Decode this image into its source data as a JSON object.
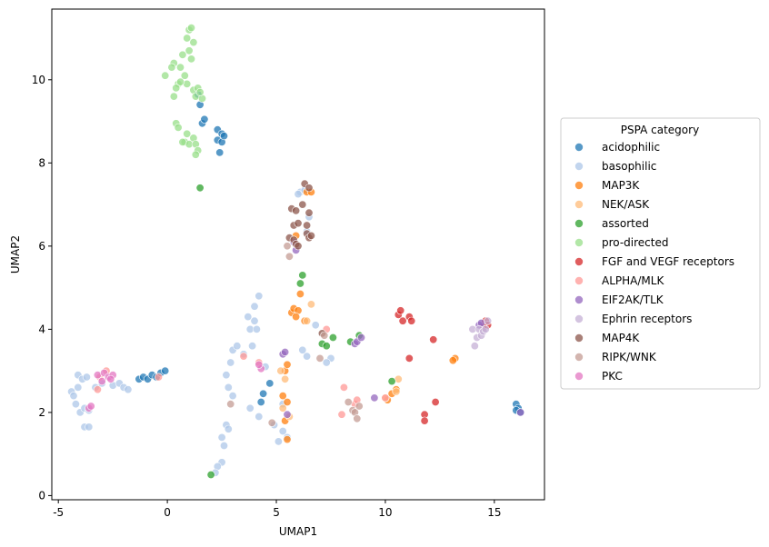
{
  "chart_data": {
    "type": "scatter",
    "xlabel": "UMAP1",
    "ylabel": "UMAP2",
    "xlim": [
      -5.3,
      17.3
    ],
    "ylim": [
      -0.1,
      11.7
    ],
    "xticks": [
      -5,
      0,
      5,
      10,
      15
    ],
    "yticks": [
      0,
      2,
      4,
      6,
      8,
      10
    ],
    "grid": false,
    "legend": {
      "title": "PSPA category",
      "placement": "outside-right"
    },
    "series": [
      {
        "name": "acidophilic",
        "color": "#1f77b4",
        "points": [
          [
            1.4,
            9.65
          ],
          [
            1.5,
            9.4
          ],
          [
            1.6,
            8.95
          ],
          [
            1.7,
            9.05
          ],
          [
            2.3,
            8.8
          ],
          [
            2.5,
            8.7
          ],
          [
            2.3,
            8.55
          ],
          [
            2.5,
            8.5
          ],
          [
            2.6,
            8.65
          ],
          [
            2.4,
            8.25
          ],
          [
            -1.3,
            2.8
          ],
          [
            -1.1,
            2.85
          ],
          [
            -0.9,
            2.8
          ],
          [
            -0.7,
            2.9
          ],
          [
            -0.5,
            2.85
          ],
          [
            -0.3,
            2.95
          ],
          [
            -0.1,
            3.0
          ],
          [
            4.3,
            2.25
          ],
          [
            4.4,
            2.45
          ],
          [
            4.7,
            2.7
          ],
          [
            16.0,
            2.2
          ],
          [
            16.1,
            2.1
          ],
          [
            16.0,
            2.05
          ],
          [
            16.2,
            2.0
          ]
        ]
      },
      {
        "name": "basophilic",
        "color": "#aec7e8",
        "points": [
          [
            -4.4,
            2.5
          ],
          [
            -4.3,
            2.4
          ],
          [
            -4.1,
            2.9
          ],
          [
            -3.9,
            2.8
          ],
          [
            -3.7,
            2.85
          ],
          [
            -4.2,
            2.2
          ],
          [
            -4.0,
            2.0
          ],
          [
            -3.8,
            2.1
          ],
          [
            -3.6,
            2.05
          ],
          [
            -3.8,
            1.65
          ],
          [
            -3.6,
            1.65
          ],
          [
            -4.1,
            2.6
          ],
          [
            -3.3,
            2.6
          ],
          [
            -3.0,
            2.7
          ],
          [
            -2.5,
            2.65
          ],
          [
            -2.2,
            2.7
          ],
          [
            -2.0,
            2.6
          ],
          [
            -1.8,
            2.55
          ],
          [
            3.0,
            3.5
          ],
          [
            3.2,
            3.6
          ],
          [
            3.5,
            3.4
          ],
          [
            3.8,
            4.0
          ],
          [
            3.7,
            4.3
          ],
          [
            4.0,
            4.2
          ],
          [
            4.2,
            4.8
          ],
          [
            4.0,
            4.55
          ],
          [
            4.1,
            4.0
          ],
          [
            3.9,
            3.6
          ],
          [
            2.7,
            2.9
          ],
          [
            2.8,
            2.6
          ],
          [
            2.9,
            3.2
          ],
          [
            3.0,
            2.4
          ],
          [
            2.7,
            1.7
          ],
          [
            2.8,
            1.6
          ],
          [
            2.5,
            1.4
          ],
          [
            2.6,
            1.2
          ],
          [
            2.5,
            0.8
          ],
          [
            2.3,
            0.7
          ],
          [
            2.2,
            0.55
          ],
          [
            3.8,
            2.1
          ],
          [
            4.2,
            1.9
          ],
          [
            4.5,
            3.1
          ],
          [
            4.9,
            1.7
          ],
          [
            5.1,
            1.3
          ],
          [
            5.3,
            1.55
          ],
          [
            5.5,
            1.4
          ],
          [
            5.3,
            2.2
          ],
          [
            6.1,
            7.3
          ],
          [
            6.0,
            7.25
          ],
          [
            6.3,
            7.35
          ],
          [
            6.5,
            6.7
          ],
          [
            6.4,
            6.35
          ],
          [
            6.2,
            3.5
          ],
          [
            6.4,
            3.35
          ],
          [
            6.8,
            4.1
          ],
          [
            7.5,
            3.3
          ],
          [
            7.3,
            3.2
          ]
        ]
      },
      {
        "name": "MAP3K",
        "color": "#ff7f0e",
        "points": [
          [
            5.7,
            4.4
          ],
          [
            5.8,
            4.5
          ],
          [
            6.0,
            4.45
          ],
          [
            5.9,
            4.3
          ],
          [
            6.1,
            4.85
          ],
          [
            6.3,
            4.2
          ],
          [
            6.4,
            7.3
          ],
          [
            6.6,
            7.3
          ],
          [
            5.9,
            6.25
          ],
          [
            5.3,
            2.4
          ],
          [
            5.5,
            2.25
          ],
          [
            5.4,
            3.0
          ],
          [
            5.5,
            3.15
          ],
          [
            5.5,
            1.35
          ],
          [
            5.4,
            1.8
          ],
          [
            10.1,
            2.3
          ],
          [
            10.3,
            2.45
          ],
          [
            10.5,
            2.55
          ],
          [
            13.2,
            3.3
          ],
          [
            13.1,
            3.25
          ]
        ]
      },
      {
        "name": "NEK/ASK",
        "color": "#ffbb78",
        "points": [
          [
            5.2,
            3.0
          ],
          [
            5.4,
            2.8
          ],
          [
            5.3,
            2.1
          ],
          [
            5.6,
            1.9
          ],
          [
            6.4,
            4.2
          ],
          [
            6.6,
            4.6
          ],
          [
            10.0,
            2.35
          ],
          [
            10.5,
            2.5
          ],
          [
            10.6,
            2.8
          ]
        ]
      },
      {
        "name": "assorted",
        "color": "#2ca02c",
        "points": [
          [
            1.5,
            7.4
          ],
          [
            2.0,
            0.5
          ],
          [
            6.2,
            5.3
          ],
          [
            6.1,
            5.1
          ],
          [
            7.1,
            3.65
          ],
          [
            7.3,
            3.6
          ],
          [
            7.6,
            3.8
          ],
          [
            8.4,
            3.7
          ],
          [
            8.8,
            3.85
          ],
          [
            10.3,
            2.75
          ]
        ]
      },
      {
        "name": "pro-directed",
        "color": "#98df8a",
        "points": [
          [
            1.0,
            11.2
          ],
          [
            1.1,
            11.25
          ],
          [
            0.9,
            11.0
          ],
          [
            1.2,
            10.9
          ],
          [
            1.0,
            10.7
          ],
          [
            0.7,
            10.6
          ],
          [
            1.1,
            10.5
          ],
          [
            0.3,
            10.4
          ],
          [
            0.2,
            10.3
          ],
          [
            0.6,
            10.3
          ],
          [
            -0.1,
            10.1
          ],
          [
            0.8,
            10.1
          ],
          [
            0.5,
            9.9
          ],
          [
            0.9,
            9.9
          ],
          [
            0.4,
            9.8
          ],
          [
            0.6,
            9.95
          ],
          [
            1.2,
            9.75
          ],
          [
            1.4,
            9.8
          ],
          [
            0.3,
            9.6
          ],
          [
            1.3,
            9.6
          ],
          [
            1.6,
            9.55
          ],
          [
            1.5,
            9.7
          ],
          [
            0.4,
            8.95
          ],
          [
            0.5,
            8.85
          ],
          [
            0.9,
            8.7
          ],
          [
            1.2,
            8.6
          ],
          [
            0.8,
            8.5
          ],
          [
            1.0,
            8.45
          ],
          [
            1.3,
            8.45
          ],
          [
            0.7,
            8.5
          ],
          [
            1.4,
            8.3
          ],
          [
            1.3,
            8.2
          ]
        ]
      },
      {
        "name": "FGF and VEGF receptors",
        "color": "#d62728",
        "points": [
          [
            10.6,
            4.35
          ],
          [
            10.7,
            4.45
          ],
          [
            10.8,
            4.2
          ],
          [
            11.1,
            4.3
          ],
          [
            11.2,
            4.2
          ],
          [
            11.1,
            3.3
          ],
          [
            12.2,
            3.75
          ],
          [
            12.3,
            2.25
          ],
          [
            11.8,
            1.95
          ],
          [
            11.8,
            1.8
          ],
          [
            14.6,
            4.2
          ],
          [
            14.7,
            4.1
          ],
          [
            14.5,
            4.05
          ]
        ]
      },
      {
        "name": "ALPHA/MLK",
        "color": "#ff9896",
        "points": [
          [
            -3.2,
            2.55
          ],
          [
            -3.1,
            2.85
          ],
          [
            -2.8,
            3.0
          ],
          [
            -0.4,
            2.85
          ],
          [
            3.5,
            3.35
          ],
          [
            4.2,
            3.2
          ],
          [
            7.3,
            4.0
          ],
          [
            8.0,
            1.95
          ],
          [
            8.1,
            2.6
          ],
          [
            8.6,
            2.2
          ],
          [
            8.7,
            2.3
          ],
          [
            10.0,
            2.35
          ]
        ]
      },
      {
        "name": "EIF2AK/TLK",
        "color": "#9467bd",
        "points": [
          [
            5.3,
            3.4
          ],
          [
            5.4,
            3.45
          ],
          [
            5.5,
            1.95
          ],
          [
            5.8,
            6.1
          ],
          [
            5.9,
            5.9
          ],
          [
            8.6,
            3.65
          ],
          [
            8.7,
            3.7
          ],
          [
            8.9,
            3.8
          ],
          [
            9.5,
            2.35
          ],
          [
            14.3,
            4.1
          ],
          [
            14.4,
            4.15
          ],
          [
            16.2,
            2.0
          ]
        ]
      },
      {
        "name": "Ephrin receptors",
        "color": "#c5b0d5",
        "points": [
          [
            14.0,
            4.0
          ],
          [
            14.1,
            3.6
          ],
          [
            14.2,
            3.8
          ],
          [
            14.3,
            4.0
          ],
          [
            14.4,
            3.85
          ],
          [
            14.5,
            3.95
          ],
          [
            14.6,
            4.0
          ],
          [
            14.7,
            4.2
          ]
        ]
      },
      {
        "name": "MAP4K",
        "color": "#8c564b",
        "points": [
          [
            6.3,
            7.5
          ],
          [
            6.5,
            7.4
          ],
          [
            6.2,
            7.0
          ],
          [
            5.7,
            6.9
          ],
          [
            5.9,
            6.85
          ],
          [
            6.5,
            6.8
          ],
          [
            5.8,
            6.5
          ],
          [
            6.0,
            6.55
          ],
          [
            6.4,
            6.5
          ],
          [
            6.4,
            6.3
          ],
          [
            6.5,
            6.2
          ],
          [
            6.6,
            6.25
          ],
          [
            5.6,
            6.2
          ],
          [
            5.8,
            6.15
          ],
          [
            5.9,
            6.05
          ],
          [
            6.0,
            6.0
          ],
          [
            7.1,
            3.9
          ]
        ]
      },
      {
        "name": "RIPK/WNK",
        "color": "#c49c94",
        "points": [
          [
            5.5,
            6.0
          ],
          [
            5.6,
            5.75
          ],
          [
            2.9,
            2.2
          ],
          [
            4.8,
            1.75
          ],
          [
            7.0,
            3.3
          ],
          [
            7.2,
            3.85
          ],
          [
            8.3,
            2.25
          ],
          [
            8.5,
            2.05
          ],
          [
            8.6,
            2.0
          ],
          [
            8.7,
            1.85
          ],
          [
            8.8,
            2.15
          ]
        ]
      },
      {
        "name": "PKC",
        "color": "#e377c2",
        "points": [
          [
            -3.6,
            2.1
          ],
          [
            -3.5,
            2.15
          ],
          [
            -3.2,
            2.9
          ],
          [
            -3.0,
            2.75
          ],
          [
            -2.9,
            2.95
          ],
          [
            -2.7,
            2.85
          ],
          [
            -2.5,
            2.9
          ],
          [
            -2.6,
            2.8
          ],
          [
            4.3,
            3.05
          ],
          [
            4.2,
            3.15
          ]
        ]
      }
    ]
  }
}
